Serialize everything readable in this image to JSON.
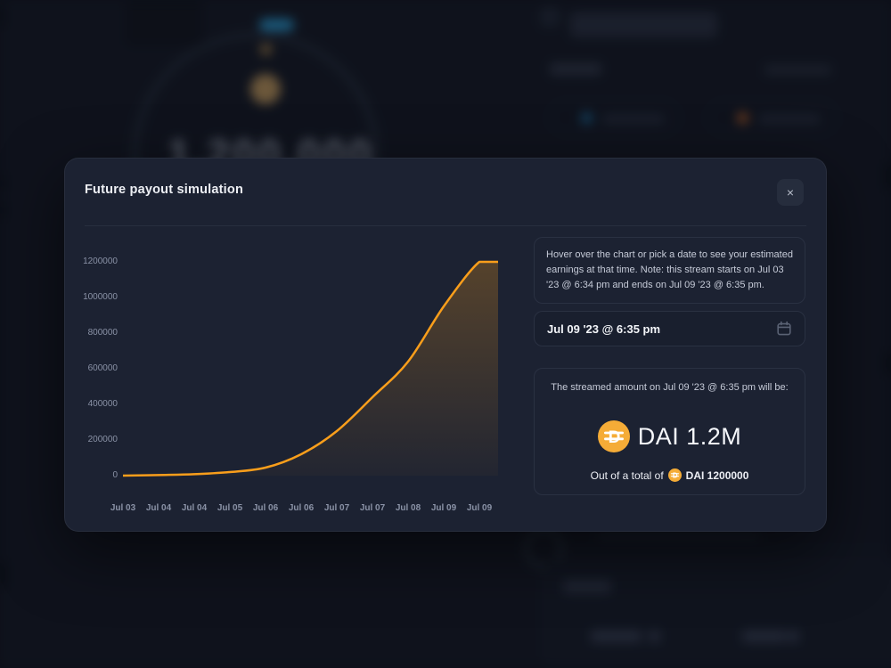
{
  "modal": {
    "title": "Future payout simulation",
    "close_label": "×",
    "info_text": "Hover over the chart or pick a date to see your estimated earnings at that time. Note: this stream starts on Jul 03 '23 @ 6:34 pm and ends on Jul 09 '23 @ 6:35 pm.",
    "date_input": {
      "value": "Jul 09 '23 @ 6:35 pm"
    },
    "result": {
      "heading": "The streamed amount on Jul 09 '23 @ 6:35 pm will be:",
      "token": "DAI",
      "amount": "DAI 1.2M",
      "total_prefix": "Out of a total of",
      "total": "DAI 1200000"
    }
  },
  "chart_data": {
    "type": "area",
    "title": "",
    "xlabel": "",
    "ylabel": "",
    "x_labels": [
      "Jul 03",
      "Jul 04",
      "Jul 04",
      "Jul 05",
      "Jul 06",
      "Jul 06",
      "Jul 07",
      "Jul 07",
      "Jul 08",
      "Jul 09",
      "Jul 09"
    ],
    "values": [
      0,
      3000,
      8000,
      20000,
      45000,
      120000,
      250000,
      440000,
      640000,
      950000,
      1200000
    ],
    "plateau_end_value": 1200000,
    "y_tick_labels": [
      "1200000",
      "1000000",
      "800000",
      "600000",
      "400000",
      "200000",
      "0"
    ],
    "ylim": [
      0,
      1200000
    ],
    "grid": false,
    "legend": false,
    "line_color": "#F99E1B",
    "fill_opacity_top": 0.26,
    "fill_opacity_bottom": 0.03
  },
  "background": {
    "blurred_total": "1,200,000"
  },
  "colors": {
    "modal_bg": "#1C2232",
    "page_bg": "#151A27",
    "accent_orange": "#F99E1B",
    "dai_gold": "#F5AC37"
  }
}
